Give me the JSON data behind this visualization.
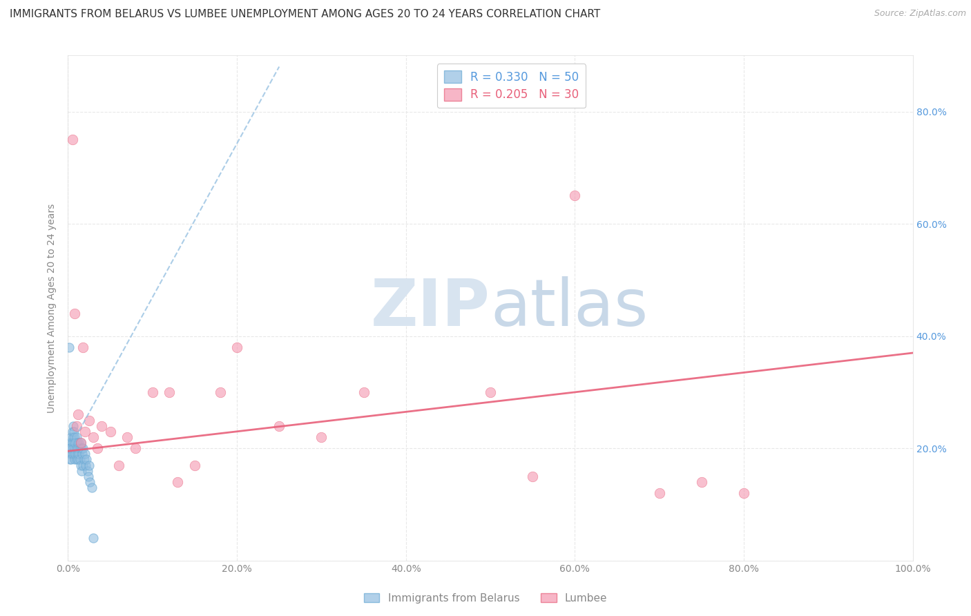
{
  "title": "IMMIGRANTS FROM BELARUS VS LUMBEE UNEMPLOYMENT AMONG AGES 20 TO 24 YEARS CORRELATION CHART",
  "source": "Source: ZipAtlas.com",
  "ylabel": "Unemployment Among Ages 20 to 24 years",
  "xlim": [
    0.0,
    1.0
  ],
  "ylim": [
    0.0,
    0.9
  ],
  "xtick_vals": [
    0.0,
    0.2,
    0.4,
    0.6,
    0.8,
    1.0
  ],
  "ytick_vals": [
    0.0,
    0.2,
    0.4,
    0.6,
    0.8
  ],
  "xticklabels": [
    "0.0%",
    "20.0%",
    "40.0%",
    "60.0%",
    "80.0%",
    "100.0%"
  ],
  "right_yticklabels": [
    "",
    "20.0%",
    "40.0%",
    "60.0%",
    "80.0%"
  ],
  "legend_label_blue": "R = 0.330   N = 50",
  "legend_label_pink": "R = 0.205   N = 30",
  "blue_scatter_x": [
    0.001,
    0.002,
    0.002,
    0.003,
    0.003,
    0.003,
    0.004,
    0.004,
    0.005,
    0.005,
    0.005,
    0.006,
    0.006,
    0.006,
    0.007,
    0.007,
    0.007,
    0.008,
    0.008,
    0.008,
    0.009,
    0.009,
    0.01,
    0.01,
    0.01,
    0.011,
    0.011,
    0.012,
    0.012,
    0.013,
    0.013,
    0.014,
    0.014,
    0.015,
    0.015,
    0.016,
    0.016,
    0.017,
    0.018,
    0.018,
    0.019,
    0.02,
    0.021,
    0.022,
    0.023,
    0.024,
    0.025,
    0.026,
    0.028,
    0.03
  ],
  "blue_scatter_y": [
    0.38,
    0.2,
    0.18,
    0.21,
    0.2,
    0.19,
    0.22,
    0.18,
    0.23,
    0.21,
    0.19,
    0.24,
    0.22,
    0.2,
    0.23,
    0.21,
    0.19,
    0.22,
    0.2,
    0.18,
    0.21,
    0.19,
    0.22,
    0.2,
    0.18,
    0.21,
    0.19,
    0.2,
    0.18,
    0.21,
    0.19,
    0.2,
    0.18,
    0.21,
    0.17,
    0.2,
    0.16,
    0.19,
    0.2,
    0.17,
    0.18,
    0.19,
    0.17,
    0.18,
    0.16,
    0.15,
    0.17,
    0.14,
    0.13,
    0.04
  ],
  "pink_scatter_x": [
    0.005,
    0.008,
    0.01,
    0.012,
    0.015,
    0.018,
    0.02,
    0.025,
    0.03,
    0.035,
    0.04,
    0.05,
    0.06,
    0.07,
    0.08,
    0.1,
    0.12,
    0.13,
    0.15,
    0.18,
    0.2,
    0.25,
    0.3,
    0.35,
    0.5,
    0.55,
    0.6,
    0.7,
    0.75,
    0.8
  ],
  "pink_scatter_y": [
    0.75,
    0.44,
    0.24,
    0.26,
    0.21,
    0.38,
    0.23,
    0.25,
    0.22,
    0.2,
    0.24,
    0.23,
    0.17,
    0.22,
    0.2,
    0.3,
    0.3,
    0.14,
    0.17,
    0.3,
    0.38,
    0.24,
    0.22,
    0.3,
    0.3,
    0.15,
    0.65,
    0.12,
    0.14,
    0.12
  ],
  "blue_line_x": [
    0.0,
    0.25
  ],
  "blue_line_y": [
    0.195,
    0.88
  ],
  "pink_line_x": [
    0.0,
    1.0
  ],
  "pink_line_y": [
    0.195,
    0.37
  ],
  "blue_color": "#90bde0",
  "blue_edge_color": "#6aaad4",
  "pink_color": "#f497b0",
  "pink_edge_color": "#e8607a",
  "blue_line_color": "#90bde0",
  "pink_line_color": "#e8607a",
  "grid_color": "#e8e8e8",
  "bg_color": "#ffffff",
  "title_fontsize": 11,
  "axis_fontsize": 10,
  "tick_fontsize": 10,
  "right_tick_color": "#5599dd",
  "watermark_zip_color": "#d8e4f0",
  "watermark_atlas_color": "#c8d8e8"
}
